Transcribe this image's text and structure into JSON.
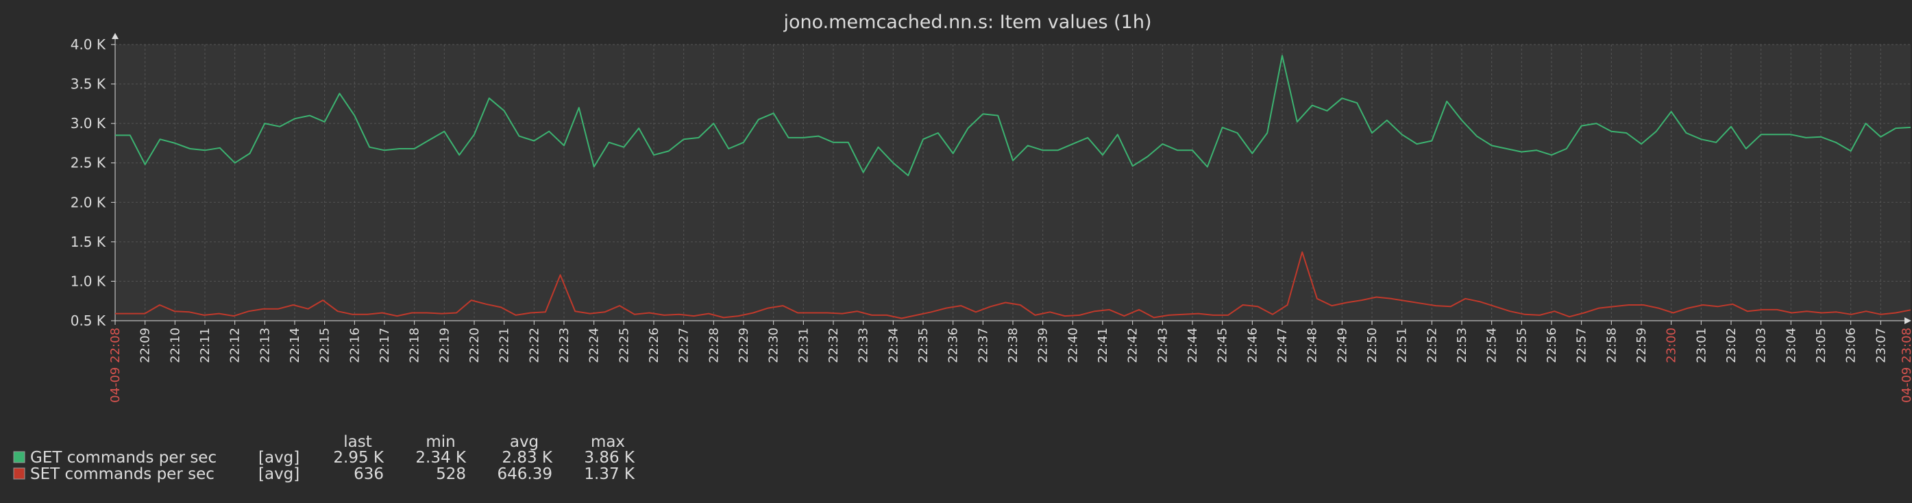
{
  "chart_data": {
    "type": "line",
    "title": "jono.memcached.nn.s: Item values (1h)",
    "y_ticks": [
      "4.0 K",
      "3.5 K",
      "3.0 K",
      "2.5 K",
      "2.0 K",
      "1.5 K",
      "1.0 K",
      "0.5 K"
    ],
    "ylim": [
      500,
      4000
    ],
    "x_start_label": "04-09 22:08",
    "x_end_label": "04-09 23:08",
    "x_highlight_label": "23:00",
    "x_labels": [
      "22:09",
      "22:10",
      "22:11",
      "22:12",
      "22:13",
      "22:14",
      "22:15",
      "22:16",
      "22:17",
      "22:18",
      "22:19",
      "22:20",
      "22:21",
      "22:22",
      "22:23",
      "22:24",
      "22:25",
      "22:26",
      "22:27",
      "22:28",
      "22:29",
      "22:30",
      "22:31",
      "22:32",
      "22:33",
      "22:34",
      "22:35",
      "22:36",
      "22:37",
      "22:38",
      "22:39",
      "22:40",
      "22:41",
      "22:42",
      "22:43",
      "22:44",
      "22:45",
      "22:46",
      "22:47",
      "22:48",
      "22:49",
      "22:50",
      "22:51",
      "22:52",
      "22:53",
      "22:54",
      "22:55",
      "22:56",
      "22:57",
      "22:58",
      "22:59",
      "23:00",
      "23:01",
      "23:02",
      "23:03",
      "23:04",
      "23:05",
      "23:06",
      "23:07"
    ],
    "grid": true,
    "colors": {
      "background": "#2b2b2b",
      "plot_bg": "#353535",
      "grid": "#555555",
      "axis": "#dcdcdc",
      "highlight": "#d9534f"
    },
    "series": [
      {
        "name": "GET commands per sec",
        "color": "#3cb371",
        "values": [
          2850,
          2850,
          2480,
          2800,
          2750,
          2680,
          2660,
          2690,
          2500,
          2620,
          3000,
          2960,
          3060,
          3100,
          3020,
          3380,
          3100,
          2700,
          2660,
          2680,
          2680,
          2790,
          2900,
          2600,
          2860,
          3320,
          3160,
          2840,
          2780,
          2900,
          2720,
          3200,
          2450,
          2760,
          2700,
          2940,
          2600,
          2650,
          2800,
          2820,
          3000,
          2680,
          2760,
          3050,
          3130,
          2820,
          2820,
          2840,
          2760,
          2760,
          2380,
          2700,
          2500,
          2340,
          2800,
          2880,
          2620,
          2940,
          3120,
          3100,
          2530,
          2720,
          2660,
          2660,
          2740,
          2820,
          2600,
          2860,
          2460,
          2580,
          2740,
          2660,
          2660,
          2450,
          2950,
          2880,
          2620,
          2880,
          3860,
          3020,
          3230,
          3160,
          3320,
          3260,
          2880,
          3040,
          2860,
          2740,
          2780,
          3280,
          3040,
          2840,
          2720,
          2680,
          2640,
          2660,
          2600,
          2680,
          2970,
          3000,
          2900,
          2880,
          2740,
          2900,
          3150,
          2880,
          2800,
          2760,
          2960,
          2680,
          2860,
          2860,
          2860,
          2820,
          2830,
          2760,
          2650,
          3000,
          2830,
          2940,
          2950
        ]
      },
      {
        "name": "SET commands per sec",
        "color": "#c0392b",
        "values": [
          590,
          590,
          590,
          700,
          620,
          610,
          570,
          590,
          560,
          620,
          650,
          650,
          700,
          650,
          760,
          620,
          580,
          580,
          600,
          560,
          600,
          600,
          590,
          600,
          760,
          710,
          670,
          570,
          600,
          610,
          1080,
          620,
          590,
          610,
          690,
          580,
          600,
          570,
          580,
          560,
          590,
          540,
          560,
          600,
          660,
          690,
          600,
          600,
          600,
          590,
          620,
          570,
          570,
          530,
          570,
          610,
          660,
          690,
          610,
          680,
          730,
          700,
          570,
          610,
          560,
          570,
          620,
          640,
          560,
          640,
          540,
          570,
          580,
          590,
          570,
          570,
          700,
          680,
          580,
          700,
          1370,
          780,
          690,
          730,
          760,
          800,
          780,
          750,
          720,
          690,
          680,
          780,
          740,
          680,
          620,
          580,
          570,
          620,
          550,
          600,
          660,
          680,
          700,
          700,
          660,
          600,
          660,
          700,
          680,
          710,
          620,
          640,
          640,
          600,
          620,
          600,
          610,
          580,
          620,
          580,
          600,
          636
        ]
      }
    ]
  },
  "legend": {
    "headers": {
      "last": "last",
      "min": "min",
      "avg": "avg",
      "max": "max"
    },
    "rows": [
      {
        "name": "GET commands per sec",
        "func": "[avg]",
        "last": "2.95 K",
        "min": "2.34 K",
        "avg": "2.83 K",
        "max": "3.86 K",
        "color": "#3cb371"
      },
      {
        "name": "SET commands per sec",
        "func": "[avg]",
        "last": "636",
        "min": "528",
        "avg": "646.39",
        "max": "1.37 K",
        "color": "#c0392b"
      }
    ]
  }
}
